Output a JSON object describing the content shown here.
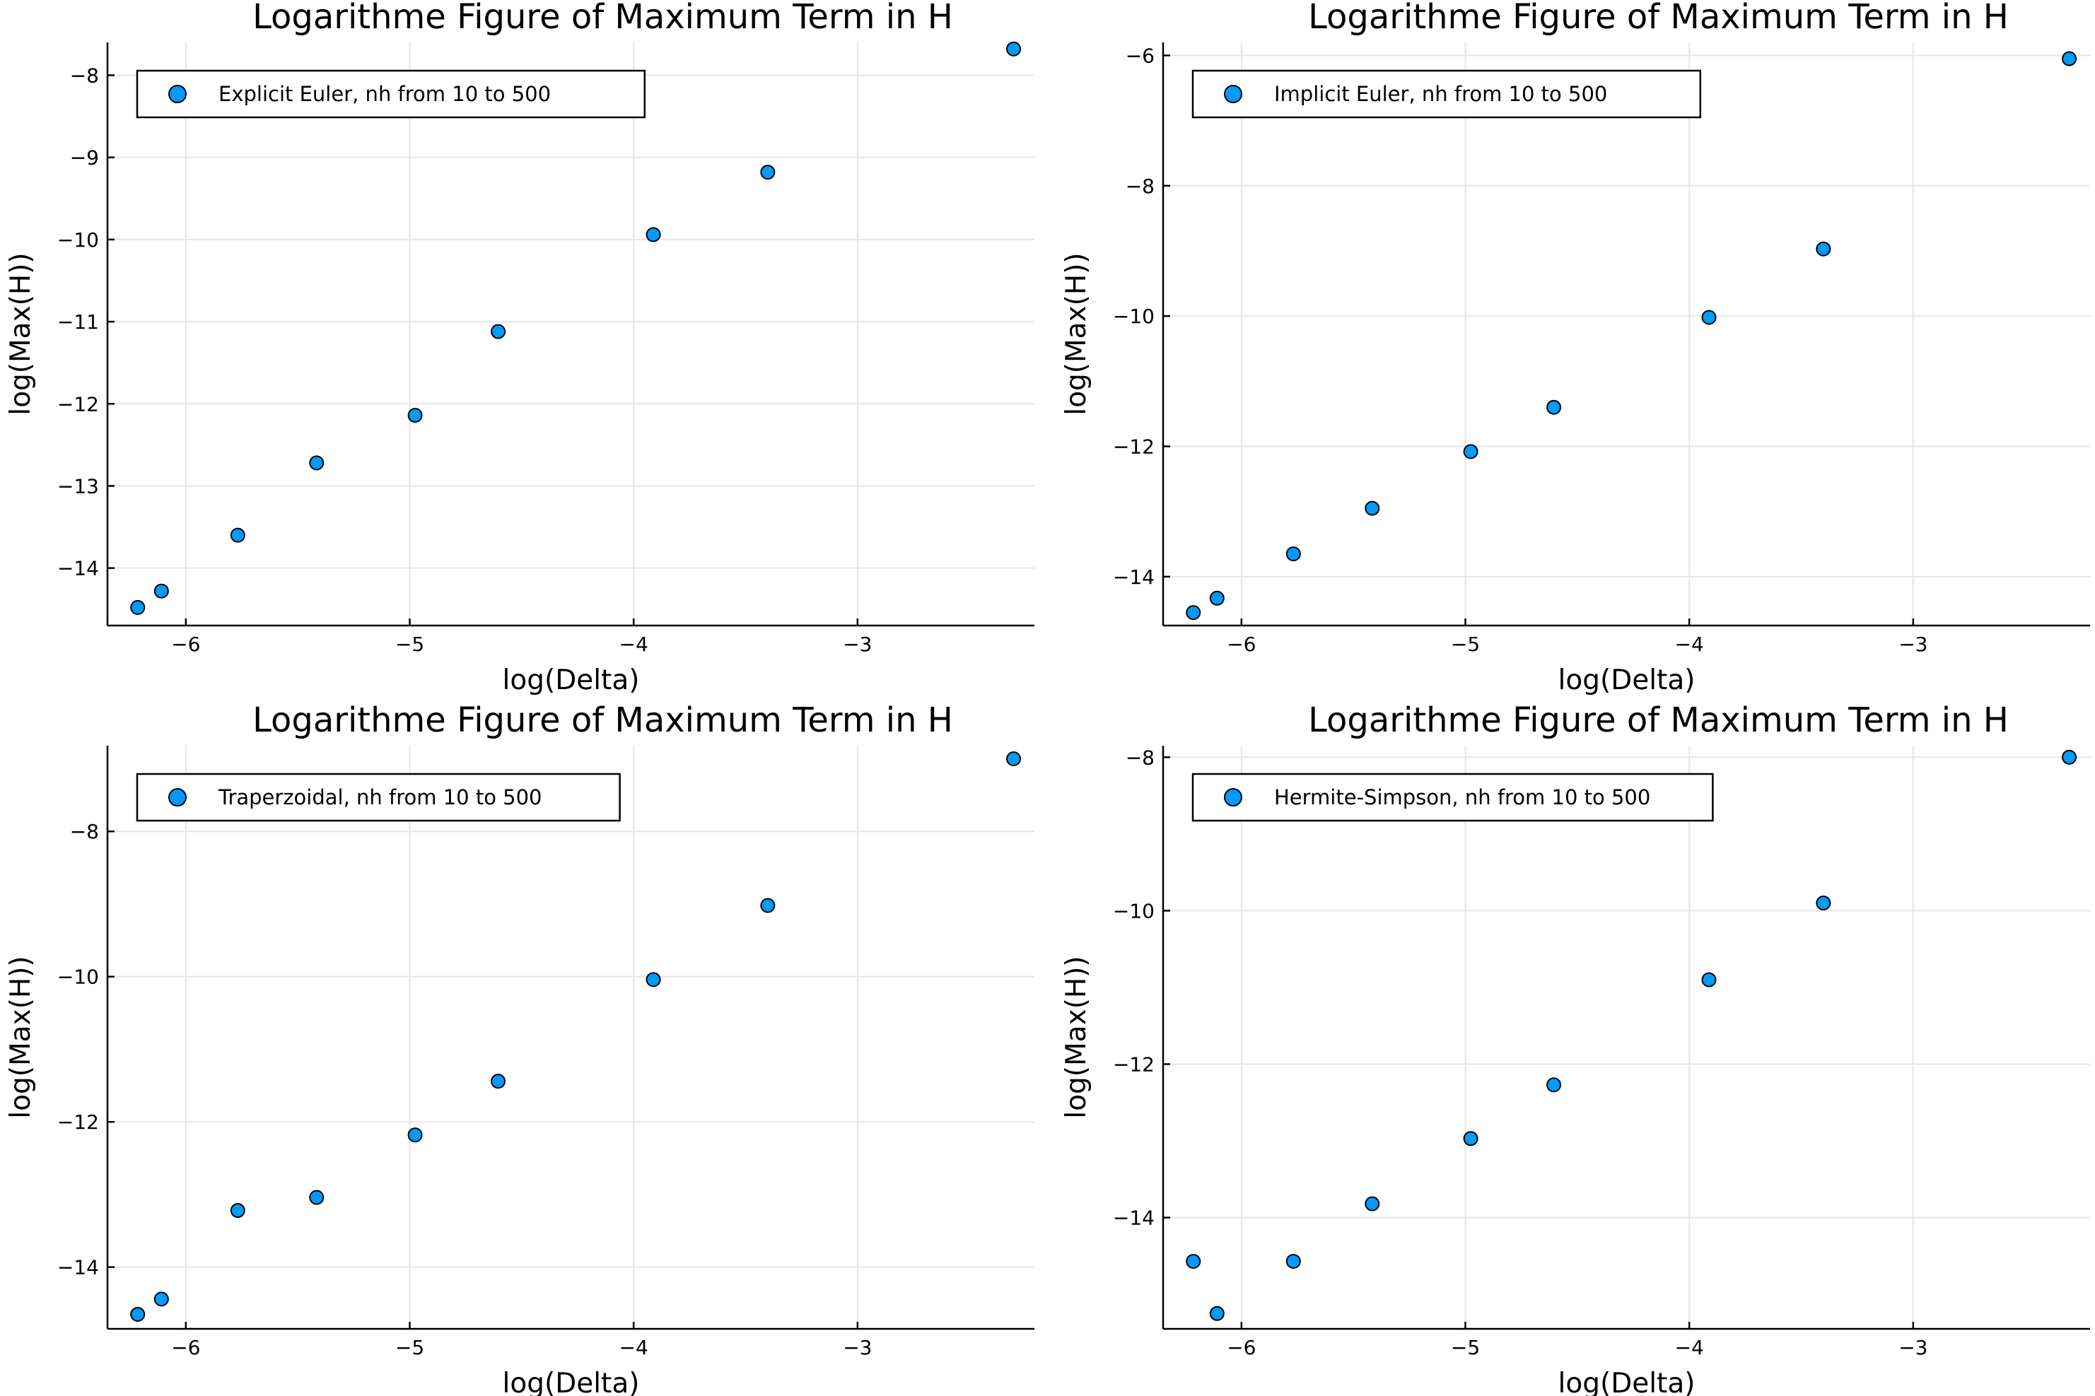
{
  "chart_data": [
    {
      "type": "scatter",
      "title": "Logarithme Figure of Maximum Term in H",
      "xlabel": "log(Delta)",
      "ylabel": "log(Max(H))",
      "xlim": [
        -6.35,
        -2.21
      ],
      "ylim": [
        -14.7,
        -7.6
      ],
      "xticks": [
        -6,
        -5,
        -4,
        -3
      ],
      "xtick_labels": [
        "−6",
        "−5",
        "−4",
        "−3"
      ],
      "yticks": [
        -14,
        -13,
        -12,
        -11,
        -10,
        -9,
        -8
      ],
      "ytick_labels": [
        "−14",
        "−13",
        "−12",
        "−11",
        "−10",
        "−9",
        "−8"
      ],
      "grid": true,
      "legend_position": "top-left",
      "series": [
        {
          "name": "Explicit Euler, nh from 10 to 500",
          "color": "#009AFA",
          "x": [
            -6.215,
            -6.109,
            -5.768,
            -5.416,
            -4.976,
            -4.605,
            -3.912,
            -3.401,
            -2.303
          ],
          "y": [
            -14.48,
            -14.28,
            -13.6,
            -12.72,
            -12.14,
            -11.12,
            -9.94,
            -9.18,
            -7.68
          ]
        }
      ]
    },
    {
      "type": "scatter",
      "title": "Logarithme Figure of Maximum Term in H",
      "xlabel": "log(Delta)",
      "ylabel": "log(Max(H))",
      "xlim": [
        -6.35,
        -2.21
      ],
      "ylim": [
        -14.75,
        -5.8
      ],
      "xticks": [
        -6,
        -5,
        -4,
        -3
      ],
      "xtick_labels": [
        "−6",
        "−5",
        "−4",
        "−3"
      ],
      "yticks": [
        -14,
        -12,
        -10,
        -8,
        -6
      ],
      "ytick_labels": [
        "−14",
        "−12",
        "−10",
        "−8",
        "−6"
      ],
      "grid": true,
      "legend_position": "top-left",
      "series": [
        {
          "name": "Implicit Euler, nh from 10 to 500",
          "color": "#009AFA",
          "x": [
            -6.215,
            -6.109,
            -5.768,
            -5.416,
            -4.976,
            -4.605,
            -3.912,
            -3.401,
            -2.303
          ],
          "y": [
            -14.55,
            -14.33,
            -13.65,
            -12.95,
            -12.08,
            -11.4,
            -10.02,
            -8.97,
            -6.05
          ]
        }
      ]
    },
    {
      "type": "scatter",
      "title": "Logarithme Figure of Maximum Term in H",
      "xlabel": "log(Delta)",
      "ylabel": "log(Max(H))",
      "xlim": [
        -6.35,
        -2.21
      ],
      "ylim": [
        -14.85,
        -6.82
      ],
      "xticks": [
        -6,
        -5,
        -4,
        -3
      ],
      "xtick_labels": [
        "−6",
        "−5",
        "−4",
        "−3"
      ],
      "yticks": [
        -14,
        -12,
        -10,
        -8
      ],
      "ytick_labels": [
        "−14",
        "−12",
        "−10",
        "−8"
      ],
      "grid": true,
      "legend_position": "top-left",
      "series": [
        {
          "name": "Traperzoidal, nh from 10 to 500",
          "color": "#009AFA",
          "x": [
            -6.215,
            -6.109,
            -5.768,
            -5.416,
            -4.976,
            -4.605,
            -3.912,
            -3.401,
            -2.303
          ],
          "y": [
            -14.65,
            -14.44,
            -13.22,
            -13.04,
            -12.18,
            -11.44,
            -10.04,
            -9.02,
            -7.0
          ]
        }
      ]
    },
    {
      "type": "scatter",
      "title": "Logarithme Figure of Maximum Term in H",
      "xlabel": "log(Delta)",
      "ylabel": "log(Max(H))",
      "xlim": [
        -6.35,
        -2.21
      ],
      "ylim": [
        -15.45,
        -7.85
      ],
      "xticks": [
        -6,
        -5,
        -4,
        -3
      ],
      "xtick_labels": [
        "−6",
        "−5",
        "−4",
        "−3"
      ],
      "yticks": [
        -14,
        -12,
        -10,
        -8
      ],
      "ytick_labels": [
        "−14",
        "−12",
        "−10",
        "−8"
      ],
      "grid": true,
      "legend_position": "top-left",
      "series": [
        {
          "name": "Hermite-Simpson, nh from 10 to 500",
          "color": "#009AFA",
          "x": [
            -6.215,
            -6.109,
            -5.768,
            -5.416,
            -4.976,
            -4.605,
            -3.912,
            -3.401,
            -2.303
          ],
          "y": [
            -14.57,
            -15.25,
            -14.57,
            -13.82,
            -12.97,
            -12.27,
            -10.9,
            -9.9,
            -8.0
          ]
        }
      ]
    }
  ]
}
